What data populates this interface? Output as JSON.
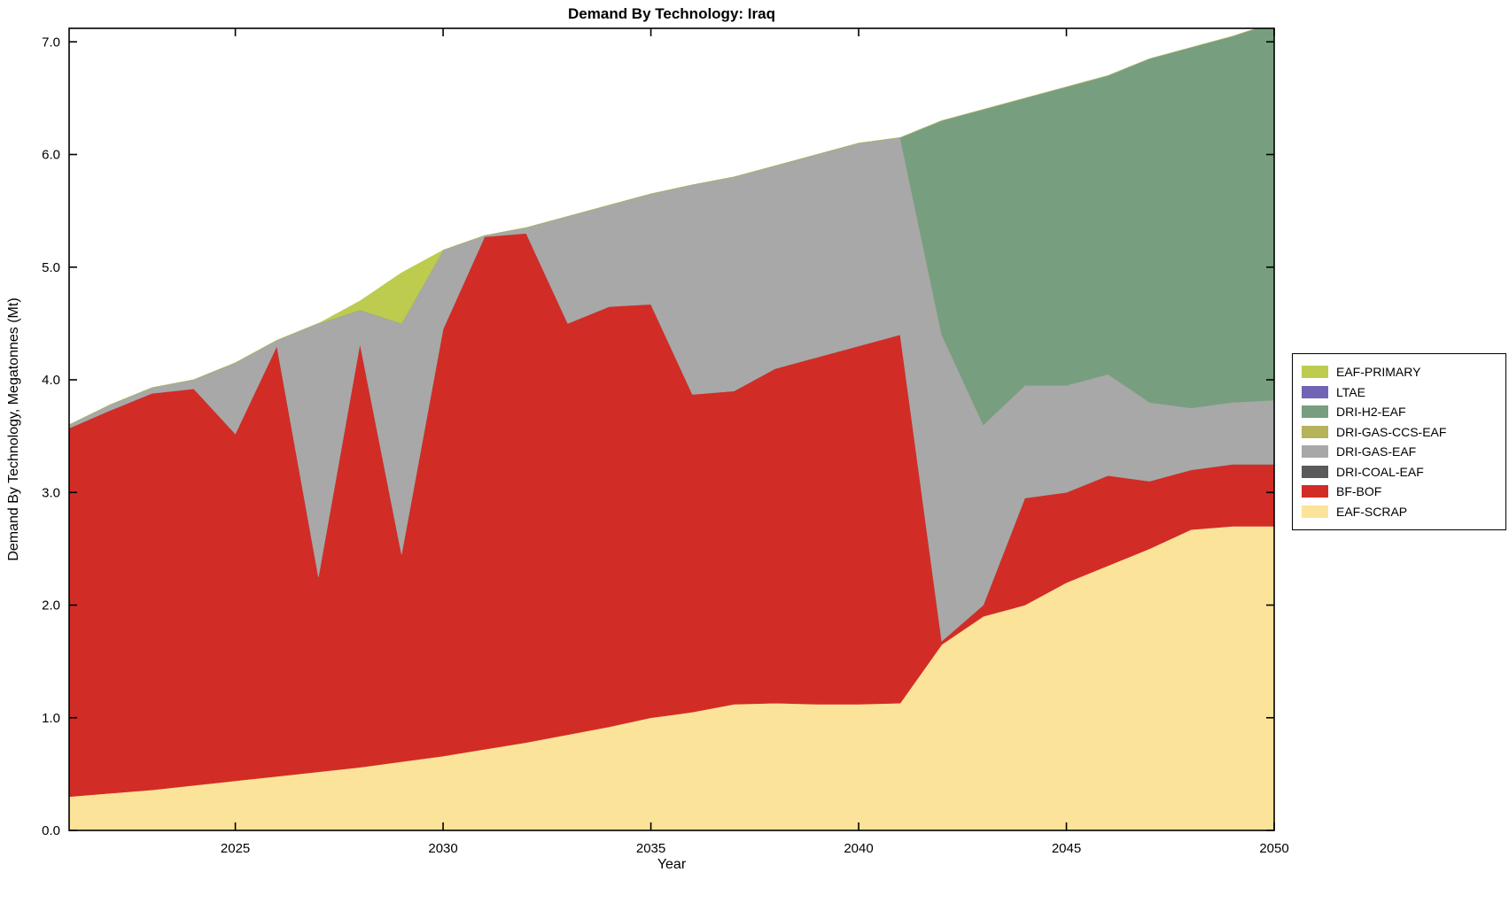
{
  "chart_data": {
    "type": "area",
    "stacked": true,
    "title": "Demand By Technology: Iraq",
    "xlabel": "Year",
    "ylabel": "Demand By Technology, Megatonnes (Mt)",
    "axes": {
      "xlim": [
        2021,
        2050
      ],
      "ylim": [
        0,
        7.12
      ],
      "xticks": [
        2025,
        2030,
        2035,
        2040,
        2045,
        2050
      ],
      "yticks": [
        0,
        1,
        2,
        3,
        4,
        5,
        6,
        7
      ],
      "ytick_decimals": 1,
      "grid": false
    },
    "x": [
      2021,
      2022,
      2023,
      2024,
      2025,
      2026,
      2027,
      2028,
      2029,
      2030,
      2031,
      2032,
      2033,
      2034,
      2035,
      2036,
      2037,
      2038,
      2039,
      2040,
      2041,
      2042,
      2043,
      2044,
      2045,
      2046,
      2047,
      2048,
      2049,
      2050
    ],
    "series": [
      {
        "name": "EAF-SCRAP",
        "color": "#fbe399",
        "values": [
          0.3,
          0.33,
          0.36,
          0.4,
          0.44,
          0.48,
          0.52,
          0.56,
          0.61,
          0.66,
          0.72,
          0.78,
          0.85,
          0.92,
          1.0,
          1.05,
          1.12,
          1.13,
          1.12,
          1.12,
          1.13,
          1.65,
          1.9,
          2.0,
          2.2,
          2.35,
          2.5,
          2.67,
          2.7,
          2.7
        ]
      },
      {
        "name": "BF-BOF",
        "color": "#d12d26",
        "values": [
          3.27,
          3.4,
          3.52,
          3.52,
          3.08,
          3.82,
          1.73,
          3.76,
          1.84,
          3.79,
          4.55,
          4.52,
          3.65,
          3.73,
          3.67,
          2.82,
          2.78,
          2.97,
          3.08,
          3.18,
          3.27,
          0.03,
          0.1,
          0.95,
          0.8,
          0.8,
          0.6,
          0.53,
          0.55,
          0.55
        ]
      },
      {
        "name": "DRI-COAL-EAF",
        "color": "#5a5a5a",
        "values": [
          0,
          0,
          0,
          0,
          0,
          0,
          0,
          0,
          0,
          0,
          0,
          0,
          0,
          0,
          0,
          0,
          0,
          0,
          0,
          0,
          0,
          0,
          0,
          0,
          0,
          0,
          0,
          0,
          0,
          0
        ]
      },
      {
        "name": "DRI-GAS-EAF",
        "color": "#a8a8a8",
        "values": [
          0.03,
          0.05,
          0.05,
          0.08,
          0.63,
          0.05,
          2.25,
          0.3,
          2.05,
          0.7,
          0.01,
          0.05,
          0.95,
          0.9,
          0.98,
          1.86,
          1.9,
          1.8,
          1.8,
          1.8,
          1.75,
          2.72,
          1.6,
          1.0,
          0.95,
          0.9,
          0.7,
          0.55,
          0.55,
          0.57
        ]
      },
      {
        "name": "DRI-GAS-CCS-EAF",
        "color": "#b5b35c",
        "values": [
          0,
          0,
          0,
          0,
          0,
          0,
          0,
          0,
          0,
          0,
          0,
          0,
          0,
          0,
          0,
          0,
          0,
          0,
          0,
          0,
          0,
          0,
          0,
          0,
          0,
          0,
          0,
          0,
          0,
          0
        ]
      },
      {
        "name": "DRI-H2-EAF",
        "color": "#789e80",
        "values": [
          0,
          0,
          0,
          0,
          0,
          0,
          0,
          0,
          0,
          0,
          0,
          0,
          0,
          0,
          0,
          0,
          0,
          0,
          0,
          0,
          0,
          1.9,
          2.8,
          2.55,
          2.65,
          2.65,
          3.05,
          3.2,
          3.25,
          3.35
        ]
      },
      {
        "name": "LTAE",
        "color": "#7264b4",
        "values": [
          0,
          0,
          0,
          0,
          0,
          0,
          0,
          0,
          0,
          0,
          0,
          0,
          0,
          0,
          0,
          0,
          0,
          0,
          0,
          0,
          0,
          0,
          0,
          0,
          0,
          0,
          0,
          0,
          0,
          0
        ]
      },
      {
        "name": "EAF-PRIMARY",
        "color": "#bdcc4e",
        "values": [
          0,
          0,
          0,
          0,
          0,
          0,
          0,
          0.08,
          0.45,
          0,
          0,
          0,
          0,
          0,
          0,
          0,
          0,
          0,
          0,
          0,
          0,
          0,
          0,
          0,
          0,
          0,
          0,
          0,
          0,
          0
        ]
      }
    ],
    "legend": {
      "position": "right-outside",
      "items_top_to_bottom": [
        "EAF-PRIMARY",
        "LTAE",
        "DRI-H2-EAF",
        "DRI-GAS-CCS-EAF",
        "DRI-GAS-EAF",
        "DRI-COAL-EAF",
        "BF-BOF",
        "EAF-SCRAP"
      ]
    }
  }
}
